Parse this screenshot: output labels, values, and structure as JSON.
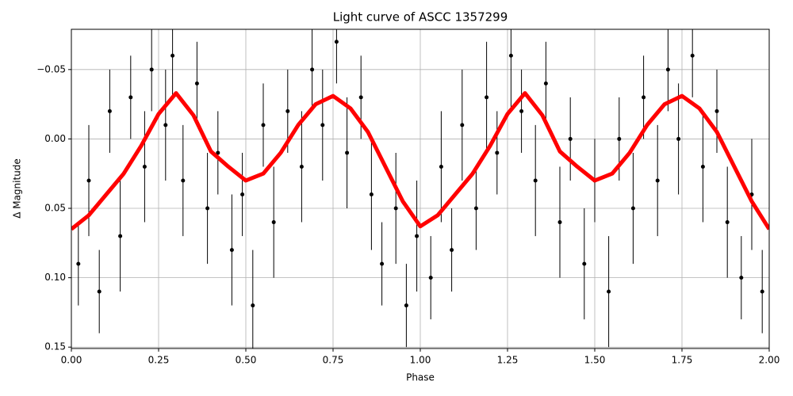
{
  "chart_data": {
    "type": "errorbar-scatter",
    "title": "Light curve of ASCC 1357299",
    "x_label": "Phase",
    "y_label": "Δ Magnitude",
    "xlim": [
      0,
      2
    ],
    "xticks": [
      {
        "value": 0,
        "label": "0.00"
      },
      {
        "value": 0.25,
        "label": "0.25"
      },
      {
        "value": 0.5,
        "label": "0.50"
      },
      {
        "value": 0.75,
        "label": "0.75"
      },
      {
        "value": 1,
        "label": "1.00"
      },
      {
        "value": 1.25,
        "label": "1.25"
      },
      {
        "value": 1.5,
        "label": "1.50"
      },
      {
        "value": 1.75,
        "label": "1.75"
      },
      {
        "value": 2,
        "label": "2.00"
      }
    ],
    "ylim": [
      -0.079,
      0.151
    ],
    "y_inverted": true,
    "yticks": [
      {
        "value": -0.05,
        "label": "−0.05"
      },
      {
        "value": 0,
        "label": "0.00"
      },
      {
        "value": 0.05,
        "label": "0.05"
      },
      {
        "value": 0.1,
        "label": "0.10"
      },
      {
        "value": 0.15,
        "label": "0.15"
      }
    ],
    "grid": true,
    "points": {
      "color": "#000000",
      "x": [
        0.02,
        0.05,
        0.08,
        0.11,
        0.14,
        0.17,
        0.21,
        0.23,
        0.27,
        0.29,
        0.32,
        0.36,
        0.39,
        0.42,
        0.46,
        0.49,
        0.52,
        0.55,
        0.58,
        0.62,
        0.66,
        0.69,
        0.72,
        0.76,
        0.79,
        0.83,
        0.86,
        0.89,
        0.93,
        0.96,
        0.99,
        1.03,
        1.06,
        1.09,
        1.12,
        1.16,
        1.19,
        1.22,
        1.26,
        1.29,
        1.33,
        1.36,
        1.4,
        1.43,
        1.47,
        1.5,
        1.54,
        1.57,
        1.61,
        1.64,
        1.68,
        1.71,
        1.74,
        1.78,
        1.81,
        1.85,
        1.88,
        1.92,
        1.95,
        1.98
      ],
      "y": [
        0.09,
        0.03,
        0.11,
        -0.02,
        0.07,
        -0.03,
        0.02,
        -0.05,
        -0.01,
        -0.06,
        0.03,
        -0.04,
        0.05,
        0.01,
        0.08,
        0.04,
        0.12,
        -0.01,
        0.06,
        -0.02,
        0.02,
        -0.05,
        -0.01,
        -0.07,
        0.01,
        -0.03,
        0.04,
        0.09,
        0.05,
        0.12,
        0.07,
        0.1,
        0.02,
        0.08,
        -0.01,
        0.05,
        -0.03,
        0.01,
        -0.06,
        -0.02,
        0.03,
        -0.04,
        0.06,
        0.0,
        0.09,
        0.03,
        0.11,
        0.0,
        0.05,
        -0.03,
        0.03,
        -0.05,
        0.0,
        -0.06,
        0.02,
        -0.02,
        0.06,
        0.1,
        0.04,
        0.11
      ],
      "errors": [
        0.03,
        0.04,
        0.03,
        0.03,
        0.04,
        0.03,
        0.04,
        0.03,
        0.04,
        0.03,
        0.04,
        0.03,
        0.04,
        0.03,
        0.04,
        0.03,
        0.04,
        0.03,
        0.04,
        0.03,
        0.04,
        0.03,
        0.04,
        0.03,
        0.04,
        0.03,
        0.04,
        0.03,
        0.04,
        0.03,
        0.04,
        0.03,
        0.04,
        0.03,
        0.04,
        0.03,
        0.04,
        0.03,
        0.04,
        0.03,
        0.04,
        0.03,
        0.04,
        0.03,
        0.04,
        0.03,
        0.04,
        0.03,
        0.04,
        0.03,
        0.04,
        0.03,
        0.04,
        0.03,
        0.04,
        0.03,
        0.04,
        0.03,
        0.04,
        0.03
      ]
    },
    "curve": {
      "color": "#ff0000",
      "x": [
        0,
        0.05,
        0.1,
        0.15,
        0.2,
        0.25,
        0.3,
        0.35,
        0.4,
        0.45,
        0.5,
        0.55,
        0.6,
        0.65,
        0.7,
        0.75,
        0.8,
        0.85,
        0.9,
        0.95,
        1,
        1.05,
        1.1,
        1.15,
        1.2,
        1.25,
        1.3,
        1.35,
        1.4,
        1.45,
        1.5,
        1.55,
        1.6,
        1.65,
        1.7,
        1.75,
        1.8,
        1.85,
        1.9,
        1.95,
        2
      ],
      "values": [
        0.065,
        0.055,
        0.04,
        0.025,
        0.005,
        -0.018,
        -0.033,
        -0.017,
        0.009,
        0.02,
        0.03,
        0.025,
        0.01,
        -0.01,
        -0.025,
        -0.031,
        -0.022,
        -0.005,
        0.02,
        0.045,
        0.063,
        0.055,
        0.04,
        0.025,
        0.005,
        -0.018,
        -0.033,
        -0.017,
        0.009,
        0.02,
        0.03,
        0.025,
        0.01,
        -0.01,
        -0.025,
        -0.031,
        -0.022,
        -0.005,
        0.02,
        0.045,
        0.065
      ]
    }
  }
}
